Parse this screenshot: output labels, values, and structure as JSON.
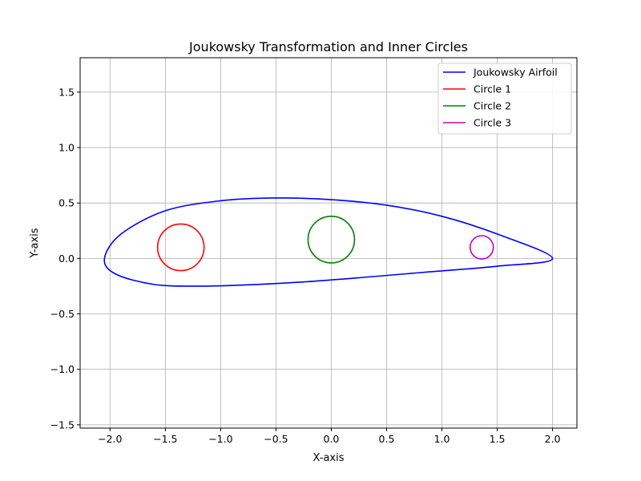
{
  "chart_data": {
    "type": "line",
    "title": "Joukowsky Transformation and Inner Circles",
    "xlabel": "X-axis",
    "ylabel": "Y-axis",
    "xlim": [
      -2.27,
      2.22
    ],
    "ylim": [
      -1.53,
      1.81
    ],
    "xticks": [
      -2.0,
      -1.5,
      -1.0,
      -0.5,
      0.0,
      0.5,
      1.0,
      1.5,
      2.0
    ],
    "xtick_labels": [
      "−2.0",
      "−1.5",
      "−1.0",
      "−0.5",
      "0.0",
      "0.5",
      "1.0",
      "1.5",
      "2.0"
    ],
    "yticks": [
      -1.5,
      -1.0,
      -0.5,
      0.0,
      0.5,
      1.0,
      1.5
    ],
    "ytick_labels": [
      "−1.5",
      "−1.0",
      "−0.5",
      "0.0",
      "0.5",
      "1.0",
      "1.5"
    ],
    "grid": true,
    "legend_position": "top-right",
    "series": [
      {
        "name": "Joukowsky Airfoil",
        "color": "#0000ff",
        "x": [
          2.0,
          1.5,
          1.0,
          0.5,
          0.0,
          -0.5,
          -1.0,
          -1.5,
          -1.9,
          -2.05,
          -1.95,
          -1.6,
          -1.2,
          -0.8,
          -0.3,
          0.3,
          0.9,
          1.5,
          2.0
        ],
        "y": [
          0.0,
          0.22,
          0.38,
          0.48,
          0.53,
          0.545,
          0.52,
          0.43,
          0.22,
          0.0,
          -0.14,
          -0.235,
          -0.25,
          -0.24,
          -0.215,
          -0.17,
          -0.12,
          -0.07,
          0.0
        ]
      },
      {
        "name": "Circle 1",
        "color": "#ff0000",
        "center": [
          -1.36,
          0.1
        ],
        "radius": 0.21
      },
      {
        "name": "Circle 2",
        "color": "#008000",
        "center": [
          0.0,
          0.17
        ],
        "radius": 0.21
      },
      {
        "name": "Circle 3",
        "color": "#bf00bf",
        "center": [
          1.36,
          0.1
        ],
        "radius": 0.105
      }
    ]
  }
}
